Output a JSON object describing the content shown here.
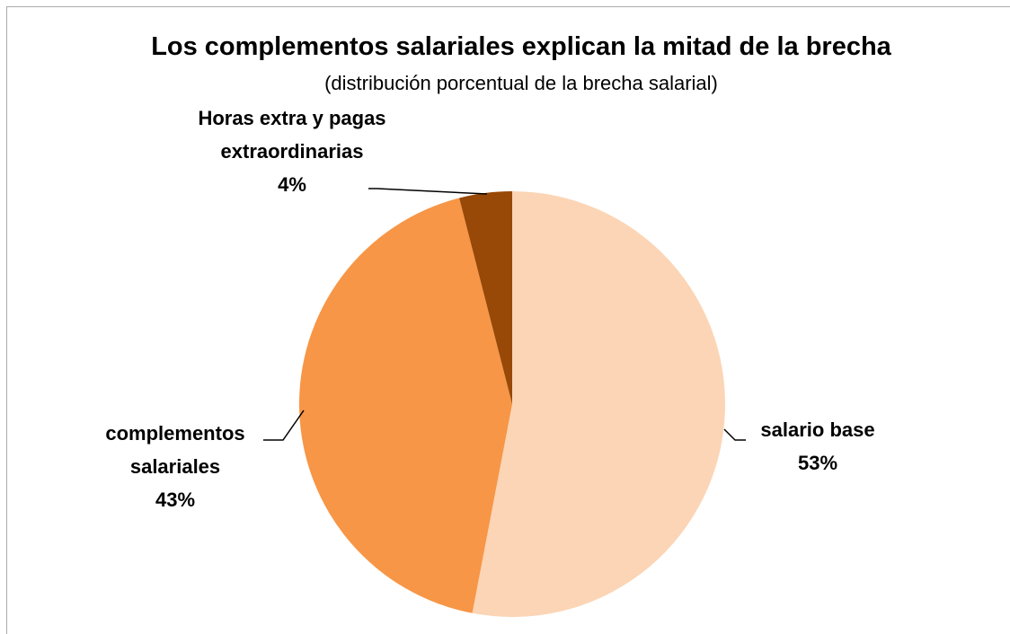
{
  "chart_data": {
    "type": "pie",
    "title": "Los complementos salariales explican la mitad de la brecha",
    "subtitle": "(distribución porcentual de la brecha salarial)",
    "categories": [
      "salario base",
      "complementos salariales",
      "Horas extra y pagas extraordinarias"
    ],
    "values": [
      53,
      43,
      4
    ],
    "value_labels": [
      "53%",
      "43%",
      "4%"
    ],
    "colors": [
      "#fbd5b5",
      "#f79646",
      "#984807"
    ]
  }
}
